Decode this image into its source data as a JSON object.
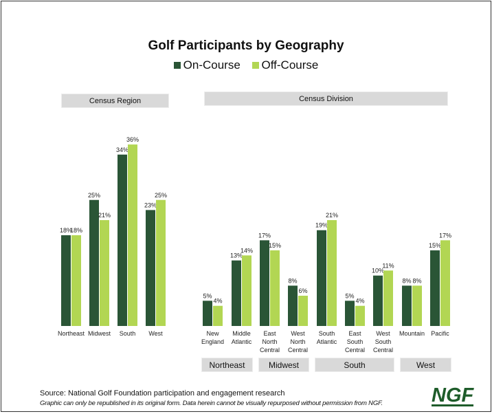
{
  "chart_data": [
    {
      "type": "bar",
      "title": "Golf Participants by Geography",
      "panel": "Census Region",
      "categories": [
        "Northeast",
        "Midwest",
        "South",
        "West"
      ],
      "series": [
        {
          "name": "On-Course",
          "values": [
            18,
            25,
            34,
            23
          ]
        },
        {
          "name": "Off-Course",
          "values": [
            18,
            21,
            36,
            25
          ]
        }
      ],
      "unit": "%",
      "ylim": [
        0,
        40
      ],
      "grid": false,
      "legend": "top"
    },
    {
      "type": "bar",
      "panel": "Census Division",
      "categories": [
        [
          "New",
          "England"
        ],
        [
          "Middle",
          "Atlantic"
        ],
        [
          "East",
          "North",
          "Central"
        ],
        [
          "West",
          "North",
          "Central"
        ],
        [
          "South",
          "Atlantic"
        ],
        [
          "East",
          "South",
          "Central"
        ],
        [
          "West",
          "South",
          "Central"
        ],
        [
          "Mountain"
        ],
        [
          "Pacific"
        ]
      ],
      "series": [
        {
          "name": "On-Course",
          "values": [
            5,
            13,
            17,
            8,
            19,
            5,
            10,
            8,
            15
          ]
        },
        {
          "name": "Off-Course",
          "values": [
            4,
            14,
            15,
            6,
            21,
            4,
            11,
            8,
            17
          ]
        }
      ],
      "groups": [
        "Northeast",
        "Midwest",
        "South",
        "West"
      ],
      "unit": "%",
      "ylim": [
        0,
        40
      ],
      "grid": false
    }
  ],
  "title": "Golf Participants by Geography",
  "legend": [
    {
      "label": "On-Course",
      "color": "#2a5536"
    },
    {
      "label": "Off-Course",
      "color": "#b2d653"
    }
  ],
  "panels": {
    "left": "Census Region",
    "right": "Census Division"
  },
  "regions": [
    "Northeast",
    "Midwest",
    "South",
    "West"
  ],
  "footer": {
    "source": "Source: National Golf Foundation participation and engagement research",
    "note": "Graphic can only be republished in its original form. Data herein cannot be visually repurposed without permission from NGF.",
    "logo": "NGF"
  }
}
